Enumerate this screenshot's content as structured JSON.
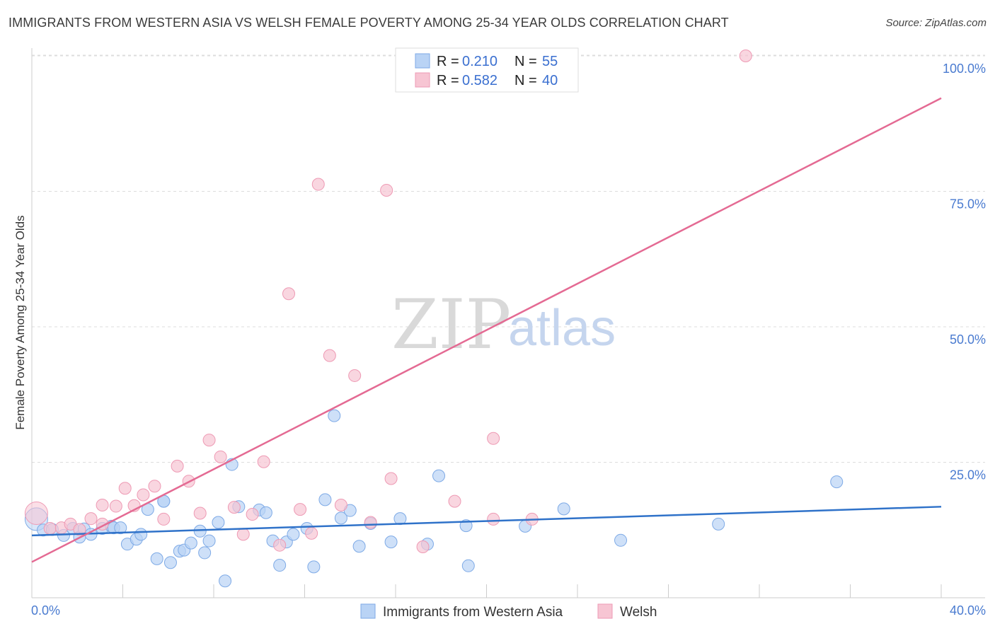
{
  "title": "IMMIGRANTS FROM WESTERN ASIA VS WELSH FEMALE POVERTY AMONG 25-34 YEAR OLDS CORRELATION CHART",
  "source": "Source: ZipAtlas.com",
  "watermark": {
    "zip": "ZIP",
    "atlas": "atlas"
  },
  "colors": {
    "blue_fill": "#b9d3f5",
    "blue_stroke": "#7eaae6",
    "blue_line": "#2f72c9",
    "pink_fill": "#f7c5d3",
    "pink_stroke": "#ee9ab4",
    "pink_line": "#e46a93",
    "tick_text": "#4a7bd0",
    "grid": "#dddddd"
  },
  "legend": {
    "r_label": "R =",
    "n_label": "N =",
    "blue": {
      "r": "0.210",
      "n": "55"
    },
    "pink": {
      "r": "0.582",
      "n": "40"
    }
  },
  "chart_data": {
    "type": "scatter",
    "xlabel": "",
    "ylabel": "Female Poverty Among 25-34 Year Olds",
    "xlim": [
      0,
      40
    ],
    "ylim": [
      0,
      104
    ],
    "x_tick_labels": [
      "0.0%",
      "40.0%"
    ],
    "y_ticks": [
      25,
      50,
      75,
      100
    ],
    "y_tick_labels": [
      "25.0%",
      "50.0%",
      "75.0%",
      "100.0%"
    ],
    "grid": true,
    "legend_position": "top-center",
    "series": [
      {
        "name": "Immigrants from Western Asia",
        "color": "blue",
        "trend": {
          "x": [
            0,
            40
          ],
          "y": [
            11.5,
            16.8
          ]
        },
        "points": [
          [
            0.2,
            14.5
          ],
          [
            0.5,
            12.5
          ],
          [
            0.9,
            12.6
          ],
          [
            1.4,
            11.5
          ],
          [
            1.8,
            12.8
          ],
          [
            2.1,
            11.2
          ],
          [
            2.3,
            12.7
          ],
          [
            2.6,
            11.7
          ],
          [
            3.1,
            12.8
          ],
          [
            3.5,
            13.2
          ],
          [
            3.6,
            12.9
          ],
          [
            3.9,
            12.9
          ],
          [
            4.2,
            9.9
          ],
          [
            4.6,
            10.8
          ],
          [
            4.8,
            11.7
          ],
          [
            5.1,
            16.3
          ],
          [
            5.5,
            7.2
          ],
          [
            5.8,
            17.8
          ],
          [
            6.1,
            6.5
          ],
          [
            6.5,
            8.6
          ],
          [
            6.7,
            8.8
          ],
          [
            7.0,
            10.1
          ],
          [
            7.4,
            12.3
          ],
          [
            7.6,
            8.3
          ],
          [
            7.8,
            10.5
          ],
          [
            8.2,
            13.9
          ],
          [
            8.5,
            3.1
          ],
          [
            8.8,
            24.6
          ],
          [
            9.1,
            16.8
          ],
          [
            10.0,
            16.2
          ],
          [
            10.3,
            15.7
          ],
          [
            10.6,
            10.5
          ],
          [
            10.9,
            6.0
          ],
          [
            11.2,
            10.3
          ],
          [
            11.5,
            11.7
          ],
          [
            12.1,
            12.8
          ],
          [
            12.4,
            5.7
          ],
          [
            12.9,
            18.1
          ],
          [
            13.3,
            33.6
          ],
          [
            13.6,
            14.7
          ],
          [
            14.0,
            16.1
          ],
          [
            14.4,
            9.5
          ],
          [
            14.9,
            13.7
          ],
          [
            15.8,
            10.3
          ],
          [
            16.2,
            14.6
          ],
          [
            17.4,
            9.9
          ],
          [
            17.9,
            22.5
          ],
          [
            19.1,
            13.3
          ],
          [
            19.2,
            5.9
          ],
          [
            21.7,
            13.2
          ],
          [
            23.4,
            16.4
          ],
          [
            25.9,
            10.6
          ],
          [
            30.2,
            13.6
          ],
          [
            35.4,
            21.4
          ],
          [
            5.8,
            17.8
          ]
        ]
      },
      {
        "name": "Welsh",
        "color": "pink",
        "trend": {
          "x": [
            0,
            40
          ],
          "y": [
            6.6,
            92.2
          ]
        },
        "points": [
          [
            0.2,
            15.6
          ],
          [
            0.8,
            12.8
          ],
          [
            1.3,
            12.9
          ],
          [
            1.7,
            13.6
          ],
          [
            2.1,
            12.6
          ],
          [
            2.6,
            14.6
          ],
          [
            3.1,
            13.6
          ],
          [
            3.1,
            17.1
          ],
          [
            3.7,
            16.9
          ],
          [
            4.1,
            20.2
          ],
          [
            4.5,
            17.0
          ],
          [
            4.9,
            19.0
          ],
          [
            5.4,
            20.6
          ],
          [
            5.8,
            14.5
          ],
          [
            6.4,
            24.3
          ],
          [
            6.9,
            21.5
          ],
          [
            7.4,
            15.6
          ],
          [
            7.8,
            29.1
          ],
          [
            8.3,
            26.0
          ],
          [
            8.9,
            16.7
          ],
          [
            9.3,
            11.7
          ],
          [
            9.7,
            15.4
          ],
          [
            10.2,
            25.1
          ],
          [
            10.9,
            9.7
          ],
          [
            11.3,
            56.1
          ],
          [
            11.8,
            16.3
          ],
          [
            12.3,
            11.9
          ],
          [
            12.6,
            76.3
          ],
          [
            13.1,
            44.7
          ],
          [
            13.6,
            17.1
          ],
          [
            14.2,
            41.0
          ],
          [
            14.9,
            13.9
          ],
          [
            15.6,
            75.2
          ],
          [
            15.8,
            22.0
          ],
          [
            17.2,
            9.4
          ],
          [
            18.6,
            17.8
          ],
          [
            20.3,
            29.4
          ],
          [
            22.0,
            14.5
          ],
          [
            31.4,
            100.0
          ],
          [
            20.3,
            14.5
          ]
        ]
      }
    ]
  },
  "bottom_legend": {
    "blue_label": "Immigrants from Western Asia",
    "pink_label": "Welsh"
  }
}
